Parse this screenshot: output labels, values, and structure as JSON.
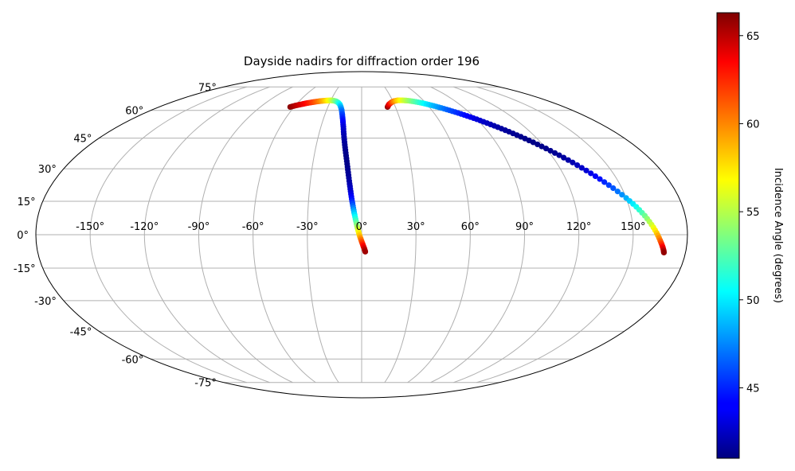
{
  "chart_data": {
    "type": "scatter",
    "projection": "mollweide",
    "title": "Dayside nadirs for diffraction order 196",
    "xlabel": "",
    "ylabel": "",
    "grid": true,
    "lon_ticks": [
      "-150°",
      "-120°",
      "-90°",
      "-60°",
      "-30°",
      "0°",
      "30°",
      "60°",
      "90°",
      "120°",
      "150°"
    ],
    "lat_ticks": [
      "75°",
      "60°",
      "45°",
      "30°",
      "15°",
      "0°",
      "-15°",
      "-30°",
      "-45°",
      "-60°",
      "-75°"
    ],
    "colorbar": {
      "label": "Incidence Angle (degrees)",
      "colormap": "jet",
      "range": [
        41,
        66.3
      ],
      "ticks": [
        "45",
        "50",
        "55",
        "60",
        "65"
      ]
    },
    "series": [
      {
        "points": [
          {
            "lon": -63.5,
            "lat": 62.0,
            "inc": 66.0
          },
          {
            "lon": -60.0,
            "lat": 62.8,
            "inc": 65.0
          },
          {
            "lon": -56.5,
            "lat": 63.4,
            "inc": 64.2
          },
          {
            "lon": -53.0,
            "lat": 64.0,
            "inc": 63.4
          },
          {
            "lon": -49.5,
            "lat": 64.5,
            "inc": 62.5
          },
          {
            "lon": -46.0,
            "lat": 64.9,
            "inc": 61.6
          },
          {
            "lon": -42.5,
            "lat": 65.3,
            "inc": 60.6
          },
          {
            "lon": -39.0,
            "lat": 65.6,
            "inc": 59.5
          },
          {
            "lon": -36.0,
            "lat": 65.8,
            "inc": 58.4
          },
          {
            "lon": -33.0,
            "lat": 65.9,
            "inc": 57.2
          },
          {
            "lon": -30.0,
            "lat": 66.0,
            "inc": 56.0
          },
          {
            "lon": -27.0,
            "lat": 65.8,
            "inc": 54.6
          },
          {
            "lon": -24.5,
            "lat": 65.4,
            "inc": 53.2
          },
          {
            "lon": -22.0,
            "lat": 64.6,
            "inc": 51.8
          },
          {
            "lon": -20.0,
            "lat": 63.5,
            "inc": 50.3
          },
          {
            "lon": -18.5,
            "lat": 62.0,
            "inc": 48.8
          },
          {
            "lon": -17.0,
            "lat": 60.0,
            "inc": 47.2
          },
          {
            "lon": -15.8,
            "lat": 57.5,
            "inc": 45.8
          },
          {
            "lon": -14.6,
            "lat": 54.5,
            "inc": 44.5
          },
          {
            "lon": -13.5,
            "lat": 51.0,
            "inc": 43.3
          },
          {
            "lon": -12.5,
            "lat": 47.0,
            "inc": 42.4
          },
          {
            "lon": -11.5,
            "lat": 43.0,
            "inc": 41.8
          },
          {
            "lon": -10.5,
            "lat": 39.0,
            "inc": 41.4
          },
          {
            "lon": -9.5,
            "lat": 35.0,
            "inc": 41.2
          },
          {
            "lon": -8.6,
            "lat": 31.0,
            "inc": 41.3
          },
          {
            "lon": -7.8,
            "lat": 27.0,
            "inc": 41.6
          },
          {
            "lon": -7.0,
            "lat": 23.0,
            "inc": 42.1
          },
          {
            "lon": -6.3,
            "lat": 19.5,
            "inc": 43.0
          },
          {
            "lon": -5.6,
            "lat": 16.0,
            "inc": 44.5
          },
          {
            "lon": -4.9,
            "lat": 13.0,
            "inc": 46.5
          },
          {
            "lon": -4.2,
            "lat": 10.0,
            "inc": 49.0
          },
          {
            "lon": -3.4,
            "lat": 7.0,
            "inc": 51.5
          },
          {
            "lon": -2.6,
            "lat": 4.0,
            "inc": 54.0
          },
          {
            "lon": -1.8,
            "lat": 1.5,
            "inc": 56.5
          },
          {
            "lon": -0.9,
            "lat": -1.0,
            "inc": 58.8
          },
          {
            "lon": 0.0,
            "lat": -3.0,
            "inc": 61.0
          },
          {
            "lon": 0.8,
            "lat": -4.8,
            "inc": 62.8
          },
          {
            "lon": 1.5,
            "lat": -6.3,
            "inc": 64.3
          },
          {
            "lon": 2.0,
            "lat": -7.6,
            "inc": 65.5
          }
        ]
      },
      {
        "points": [
          {
            "lon": 23.0,
            "lat": 62.0,
            "inc": 66.0
          },
          {
            "lon": 25.0,
            "lat": 63.5,
            "inc": 64.0
          },
          {
            "lon": 28.0,
            "lat": 64.7,
            "inc": 62.0
          },
          {
            "lon": 31.0,
            "lat": 65.5,
            "inc": 60.0
          },
          {
            "lon": 35.0,
            "lat": 66.0,
            "inc": 58.0
          },
          {
            "lon": 40.0,
            "lat": 66.0,
            "inc": 56.0
          },
          {
            "lon": 45.0,
            "lat": 65.8,
            "inc": 54.5
          },
          {
            "lon": 50.0,
            "lat": 65.3,
            "inc": 53.0
          },
          {
            "lon": 55.0,
            "lat": 64.6,
            "inc": 51.5
          },
          {
            "lon": 60.0,
            "lat": 63.7,
            "inc": 50.0
          },
          {
            "lon": 65.0,
            "lat": 62.6,
            "inc": 48.7
          },
          {
            "lon": 70.0,
            "lat": 61.4,
            "inc": 47.5
          },
          {
            "lon": 75.0,
            "lat": 60.0,
            "inc": 46.3
          },
          {
            "lon": 80.0,
            "lat": 58.5,
            "inc": 45.2
          },
          {
            "lon": 85.0,
            "lat": 56.8,
            "inc": 44.2
          },
          {
            "lon": 90.0,
            "lat": 55.0,
            "inc": 43.3
          },
          {
            "lon": 95.0,
            "lat": 52.9,
            "inc": 42.6
          },
          {
            "lon": 100.0,
            "lat": 50.7,
            "inc": 42.0
          },
          {
            "lon": 105.0,
            "lat": 48.3,
            "inc": 41.6
          },
          {
            "lon": 110.0,
            "lat": 45.7,
            "inc": 41.3
          },
          {
            "lon": 115.0,
            "lat": 42.9,
            "inc": 41.2
          },
          {
            "lon": 120.0,
            "lat": 39.8,
            "inc": 41.3
          },
          {
            "lon": 125.0,
            "lat": 36.5,
            "inc": 41.6
          },
          {
            "lon": 130.0,
            "lat": 33.0,
            "inc": 42.2
          },
          {
            "lon": 135.0,
            "lat": 29.2,
            "inc": 43.1
          },
          {
            "lon": 140.0,
            "lat": 25.2,
            "inc": 44.5
          },
          {
            "lon": 145.0,
            "lat": 21.0,
            "inc": 46.3
          },
          {
            "lon": 150.0,
            "lat": 16.5,
            "inc": 48.5
          },
          {
            "lon": 154.0,
            "lat": 12.5,
            "inc": 50.8
          },
          {
            "lon": 157.5,
            "lat": 8.5,
            "inc": 53.2
          },
          {
            "lon": 160.5,
            "lat": 4.5,
            "inc": 55.6
          },
          {
            "lon": 163.0,
            "lat": 0.8,
            "inc": 58.0
          },
          {
            "lon": 165.0,
            "lat": -2.5,
            "inc": 60.4
          },
          {
            "lon": 166.5,
            "lat": -5.0,
            "inc": 62.6
          },
          {
            "lon": 167.5,
            "lat": -6.8,
            "inc": 64.4
          },
          {
            "lon": 168.0,
            "lat": -8.0,
            "inc": 65.8
          }
        ]
      }
    ]
  }
}
